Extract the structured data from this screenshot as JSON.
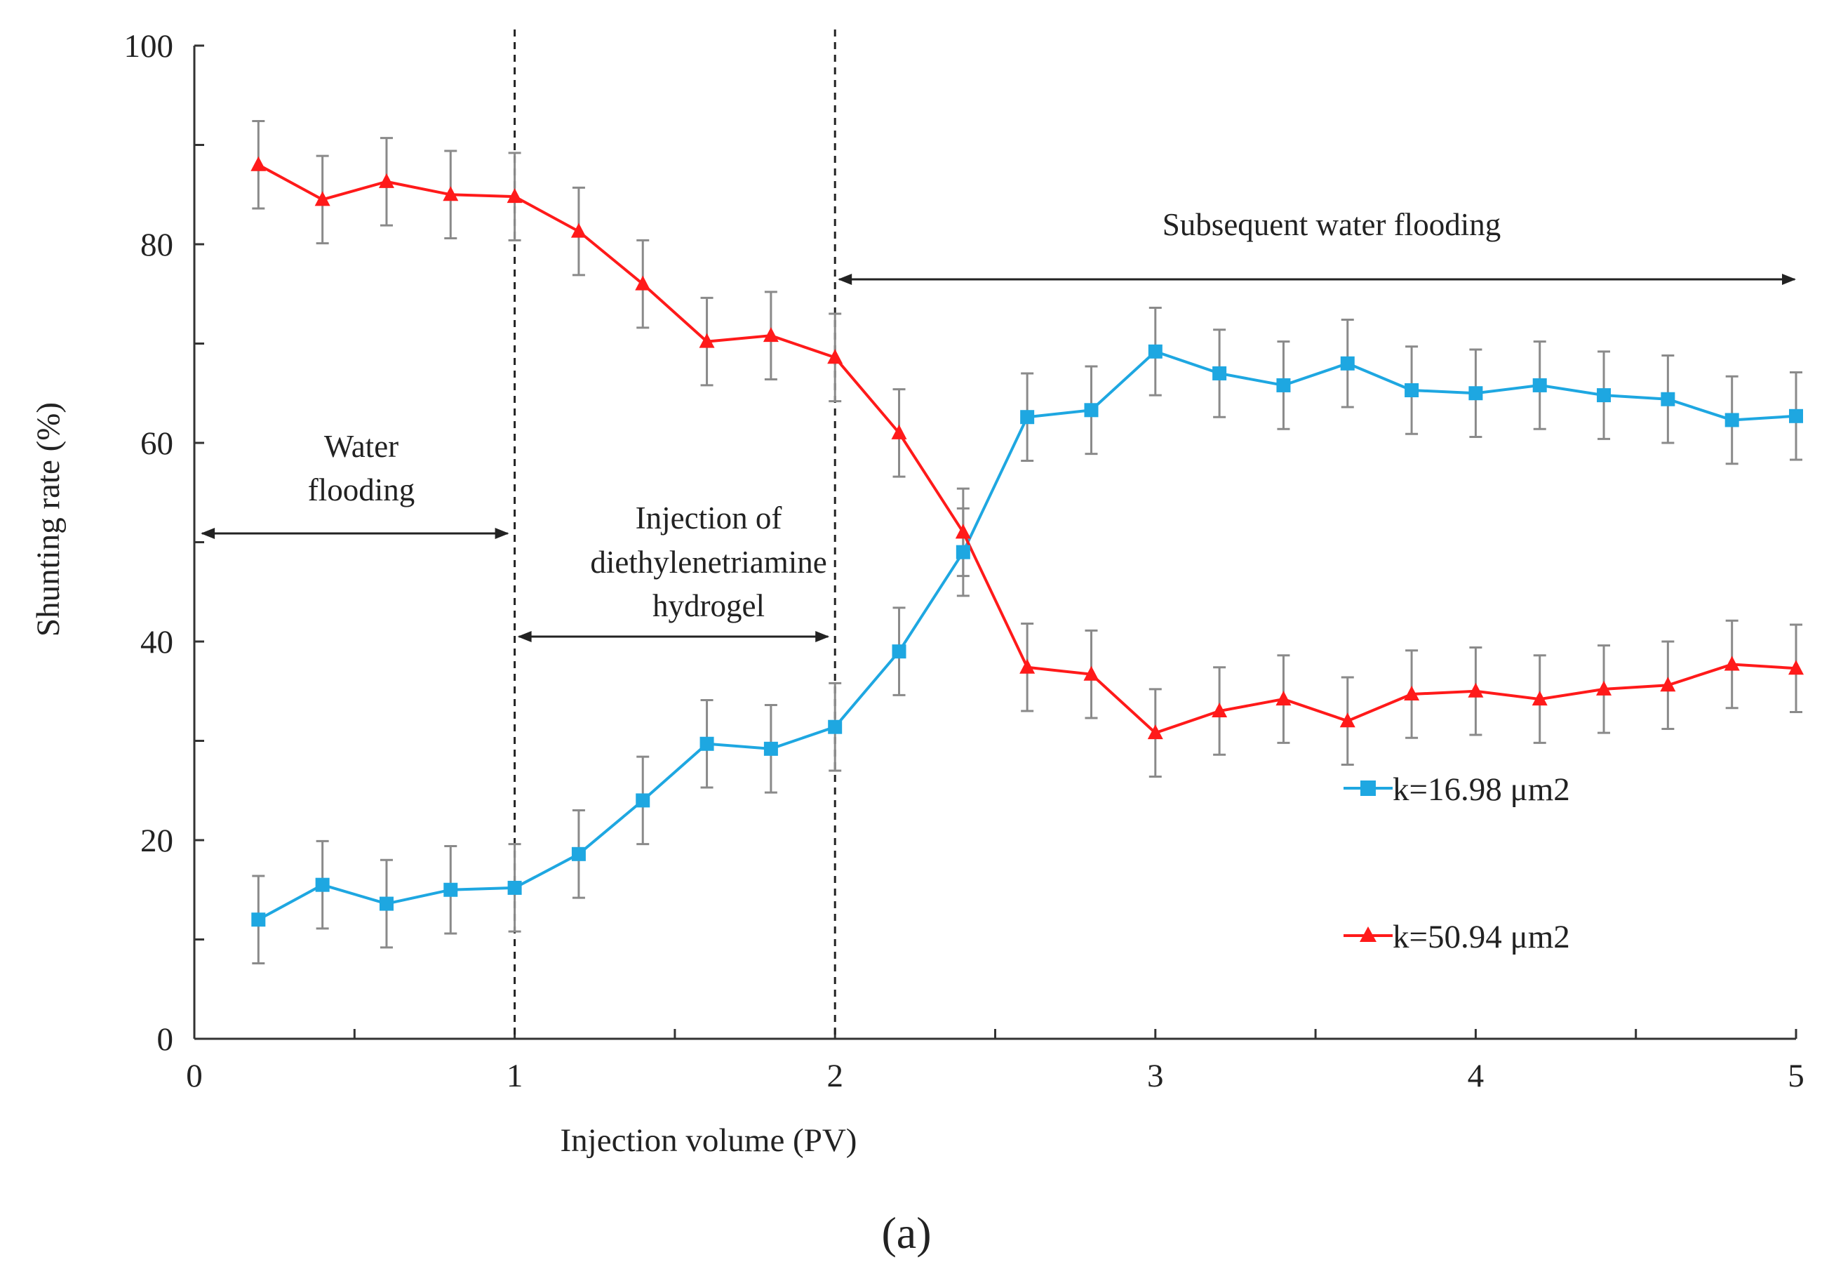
{
  "chart_data": {
    "type": "line",
    "title": "",
    "xlabel": "Injection volume (PV)",
    "ylabel": "Shunting rate (%)",
    "xlim": [
      0,
      5
    ],
    "ylim": [
      0,
      100
    ],
    "xticks": [
      0,
      1,
      2,
      3,
      4,
      5
    ],
    "yticks": [
      0,
      20,
      40,
      60,
      80,
      100
    ],
    "x": [
      0.2,
      0.4,
      0.6,
      0.8,
      1.0,
      1.2,
      1.4,
      1.6,
      1.8,
      2.0,
      2.2,
      2.4,
      2.6,
      2.8,
      3.0,
      3.2,
      3.4,
      3.6,
      3.8,
      4.0,
      4.2,
      4.4,
      4.6,
      4.8,
      5.0
    ],
    "error": 4.4,
    "series": [
      {
        "name": "k=16.98 μm2",
        "color": "#1ea7e1",
        "marker": "square",
        "values": [
          12.0,
          15.5,
          13.6,
          15.0,
          15.2,
          18.6,
          24.0,
          29.7,
          29.2,
          31.4,
          39.0,
          49.0,
          62.6,
          63.3,
          69.2,
          67.0,
          65.8,
          68.0,
          65.3,
          65.0,
          65.8,
          64.8,
          64.4,
          62.3,
          62.7
        ]
      },
      {
        "name": "k=50.94 μm2",
        "color": "#ff1a1a",
        "marker": "triangle",
        "values": [
          88.0,
          84.5,
          86.3,
          85.0,
          84.8,
          81.3,
          76.0,
          70.2,
          70.8,
          68.6,
          61.0,
          51.0,
          37.4,
          36.7,
          30.8,
          33.0,
          34.2,
          32.0,
          34.7,
          35.0,
          34.2,
          35.2,
          35.6,
          37.7,
          37.3
        ]
      }
    ],
    "phase_boundaries": [
      1,
      2
    ],
    "annotations": {
      "water_flooding": [
        "Water",
        "flooding"
      ],
      "injection": [
        "Injection of",
        "diethylenetriamine",
        "hydrogel"
      ],
      "subsequent": "Subsequent water flooding"
    },
    "legend_position": "right"
  },
  "caption": "(a)"
}
